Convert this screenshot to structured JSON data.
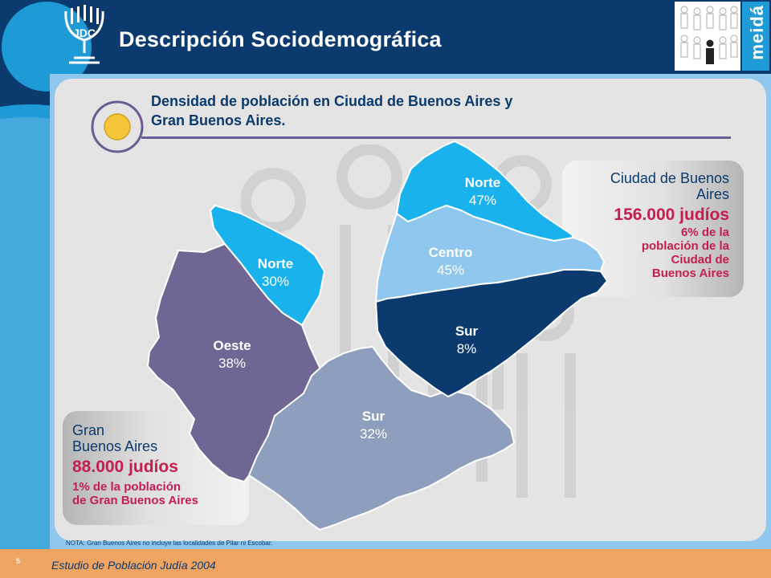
{
  "header": {
    "title": "Descripción Sociodemográfica",
    "logo_text": "JDC",
    "brand_text": "meidá"
  },
  "subtitle": {
    "line1": "Densidad de población en Ciudad de Buenos Aires y",
    "line2": "Gran Buenos Aires."
  },
  "regions": {
    "caba_norte": {
      "name": "Norte",
      "value": "47%"
    },
    "caba_centro": {
      "name": "Centro",
      "value": "45%"
    },
    "caba_sur": {
      "name": "Sur",
      "value": "8%"
    },
    "gba_norte": {
      "name": "Norte",
      "value": "30%"
    },
    "gba_oeste": {
      "name": "Oeste",
      "value": "38%"
    },
    "gba_sur": {
      "name": "Sur",
      "value": "32%"
    }
  },
  "caba_card": {
    "name_line1": "Ciudad de Buenos",
    "name_line2": "Aires",
    "count": "156.000 judíos",
    "share_line1": "6% de la",
    "share_line2": "población de la",
    "share_line3": "Ciudad de",
    "share_line4": "Buenos Aires"
  },
  "gba_card": {
    "name_line1": "Gran",
    "name_line2": "Buenos Aires",
    "count": "88.000 judíos",
    "share_line1": "1% de la población",
    "share_line2": "de Gran Buenos Aires"
  },
  "note": "NOTA: Gran Buenos Aires no incluye las localidades de Pilar ni Escobar.",
  "footer": {
    "page_number": "5",
    "text": "Estudio de Población Judía 2004"
  },
  "colors": {
    "navy": "#0b3a6e",
    "cyan": "#1ab2ec",
    "light_blue": "#8fc7ef",
    "purple": "#6f6694",
    "steel": "#8d9fbd",
    "crimson": "#c41e50",
    "orange": "#f0a461"
  }
}
